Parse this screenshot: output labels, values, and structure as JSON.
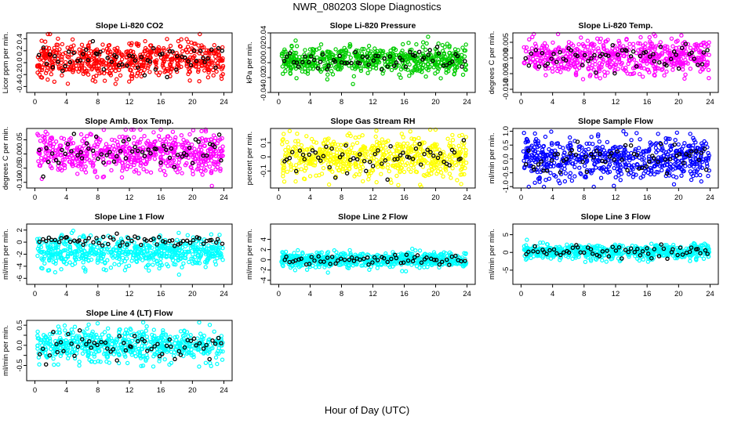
{
  "page": {
    "title": "NWR_080203  Slope Diagnostics",
    "xlabel": "Hour of Day (UTC)"
  },
  "colors": {
    "red": "#ff0000",
    "green": "#00cc00",
    "magenta": "#ff00ff",
    "yellow": "#ffff00",
    "blue": "#0000ff",
    "cyan": "#00ffff",
    "black": "#000000"
  },
  "chart_data": [
    {
      "type": "scatter",
      "title": "Slope Li-820 CO2",
      "ylabel": "Licor ppm per min.",
      "xlim": [
        0,
        24
      ],
      "ylim": [
        -0.5,
        0.5
      ],
      "yticks": [
        -0.4,
        -0.2,
        0.0,
        0.2,
        0.4
      ],
      "ytick_labels": [
        "-0.4",
        "-0.2",
        "0.0",
        "0.2",
        "0.4"
      ],
      "xticks": [
        0,
        4,
        8,
        12,
        16,
        20,
        24
      ],
      "color_name": "red",
      "center": 0.05,
      "spread": 0.16,
      "seed": 11
    },
    {
      "type": "scatter",
      "title": "Slope Li-820 Pressure",
      "ylabel": "kPa per min.",
      "xlim": [
        0,
        24
      ],
      "ylim": [
        -0.04,
        0.04
      ],
      "yticks": [
        -0.04,
        -0.02,
        0.0,
        0.02,
        0.04
      ],
      "ytick_labels": [
        "-0.04",
        "-0.02",
        "0.00",
        "0.02",
        "0.04"
      ],
      "xticks": [
        0,
        4,
        8,
        12,
        16,
        20,
        24
      ],
      "color_name": "green",
      "center": 0.004,
      "spread": 0.009,
      "seed": 23
    },
    {
      "type": "scatter",
      "title": "Slope Li-820 Temp.",
      "ylabel": "degrees C per min.",
      "xlim": [
        0,
        24
      ],
      "ylim": [
        -0.011,
        0.008
      ],
      "yticks": [
        -0.01,
        -0.005,
        0.0,
        0.005
      ],
      "ytick_labels": [
        "-0.010",
        "-0.005",
        "0.000",
        "0.005"
      ],
      "xticks": [
        0,
        4,
        8,
        12,
        16,
        20,
        24
      ],
      "color_name": "magenta",
      "center": 0.0002,
      "spread": 0.0028,
      "seed": 37
    },
    {
      "type": "scatter",
      "title": "Slope Amb. Box Temp.",
      "ylabel": "degrees C per min.",
      "xlim": [
        0,
        24
      ],
      "ylim": [
        -0.12,
        0.09
      ],
      "yticks": [
        -0.1,
        -0.05,
        0.0,
        0.05
      ],
      "ytick_labels": [
        "-0.10",
        "-0.05",
        "0.00",
        "0.05"
      ],
      "xticks": [
        0,
        4,
        8,
        12,
        16,
        20,
        24
      ],
      "color_name": "magenta",
      "center": 0.0,
      "spread": 0.035,
      "seed": 41
    },
    {
      "type": "scatter",
      "title": "Slope Gas Stream RH",
      "ylabel": "percent per min.",
      "xlim": [
        0,
        24
      ],
      "ylim": [
        -0.22,
        0.2
      ],
      "yticks": [
        -0.1,
        0.0,
        0.1
      ],
      "ytick_labels": [
        "-0.1",
        "0",
        "0.1"
      ],
      "xticks": [
        0,
        4,
        8,
        12,
        16,
        20,
        24
      ],
      "color_name": "yellow",
      "center": 0.0,
      "spread": 0.075,
      "seed": 53
    },
    {
      "type": "scatter",
      "title": "Slope Sample Flow",
      "ylabel": "ml/min per min.",
      "xlim": [
        0,
        24
      ],
      "ylim": [
        -1.05,
        1.1
      ],
      "yticks": [
        -1.0,
        -0.5,
        0.0,
        0.5,
        1.0
      ],
      "ytick_labels": [
        "-1.0",
        "-0.5",
        "0.0",
        "0.5",
        "1.0"
      ],
      "xticks": [
        0,
        4,
        8,
        12,
        16,
        20,
        24
      ],
      "color_name": "blue",
      "center": 0.0,
      "spread": 0.35,
      "seed": 67
    },
    {
      "type": "scatter",
      "title": "Slope Line 1 Flow",
      "ylabel": "ml/min per min.",
      "xlim": [
        0,
        24
      ],
      "ylim": [
        -7,
        3
      ],
      "yticks": [
        -6,
        -4,
        -2,
        0,
        2
      ],
      "ytick_labels": [
        "-6",
        "-4",
        "-2",
        "0",
        "2"
      ],
      "xticks": [
        0,
        4,
        8,
        12,
        16,
        20,
        24
      ],
      "color_name": "cyan",
      "center": -1.6,
      "spread": 1.2,
      "seed": 71,
      "black_center": 0.2,
      "black_spread": 0.45
    },
    {
      "type": "scatter",
      "title": "Slope Line 2 Flow",
      "ylabel": "ml/min per min.",
      "xlim": [
        0,
        24
      ],
      "ylim": [
        -4.8,
        7
      ],
      "yticks": [
        -4,
        -2,
        0,
        2,
        4
      ],
      "ytick_labels": [
        "-4",
        "-2",
        "0",
        "2",
        "4"
      ],
      "xticks": [
        0,
        4,
        8,
        12,
        16,
        20,
        24
      ],
      "color_name": "cyan",
      "center": 0.0,
      "spread": 0.75,
      "seed": 83
    },
    {
      "type": "scatter",
      "title": "Slope Line 3 Flow",
      "ylabel": "ml/min per min.",
      "xlim": [
        0,
        24
      ],
      "ylim": [
        -9,
        8
      ],
      "yticks": [
        -5,
        0,
        5
      ],
      "ytick_labels": [
        "-5",
        "0",
        "5"
      ],
      "xticks": [
        0,
        4,
        8,
        12,
        16,
        20,
        24
      ],
      "color_name": "cyan",
      "center": 0.2,
      "spread": 1.1,
      "seed": 97
    },
    {
      "type": "scatter",
      "title": "Slope Line 4 (LT) Flow",
      "ylabel": "ml/min per min.",
      "xlim": [
        0,
        24
      ],
      "ylim": [
        -0.88,
        0.62
      ],
      "yticks": [
        -0.5,
        -0.25,
        0.0,
        0.25,
        0.5
      ],
      "ytick_labels": [
        "-0.5",
        "",
        "0.0",
        "",
        "0.5"
      ],
      "xticks": [
        0,
        4,
        8,
        12,
        16,
        20,
        24
      ],
      "color_name": "cyan",
      "center": 0.0,
      "spread": 0.2,
      "seed": 101
    }
  ]
}
